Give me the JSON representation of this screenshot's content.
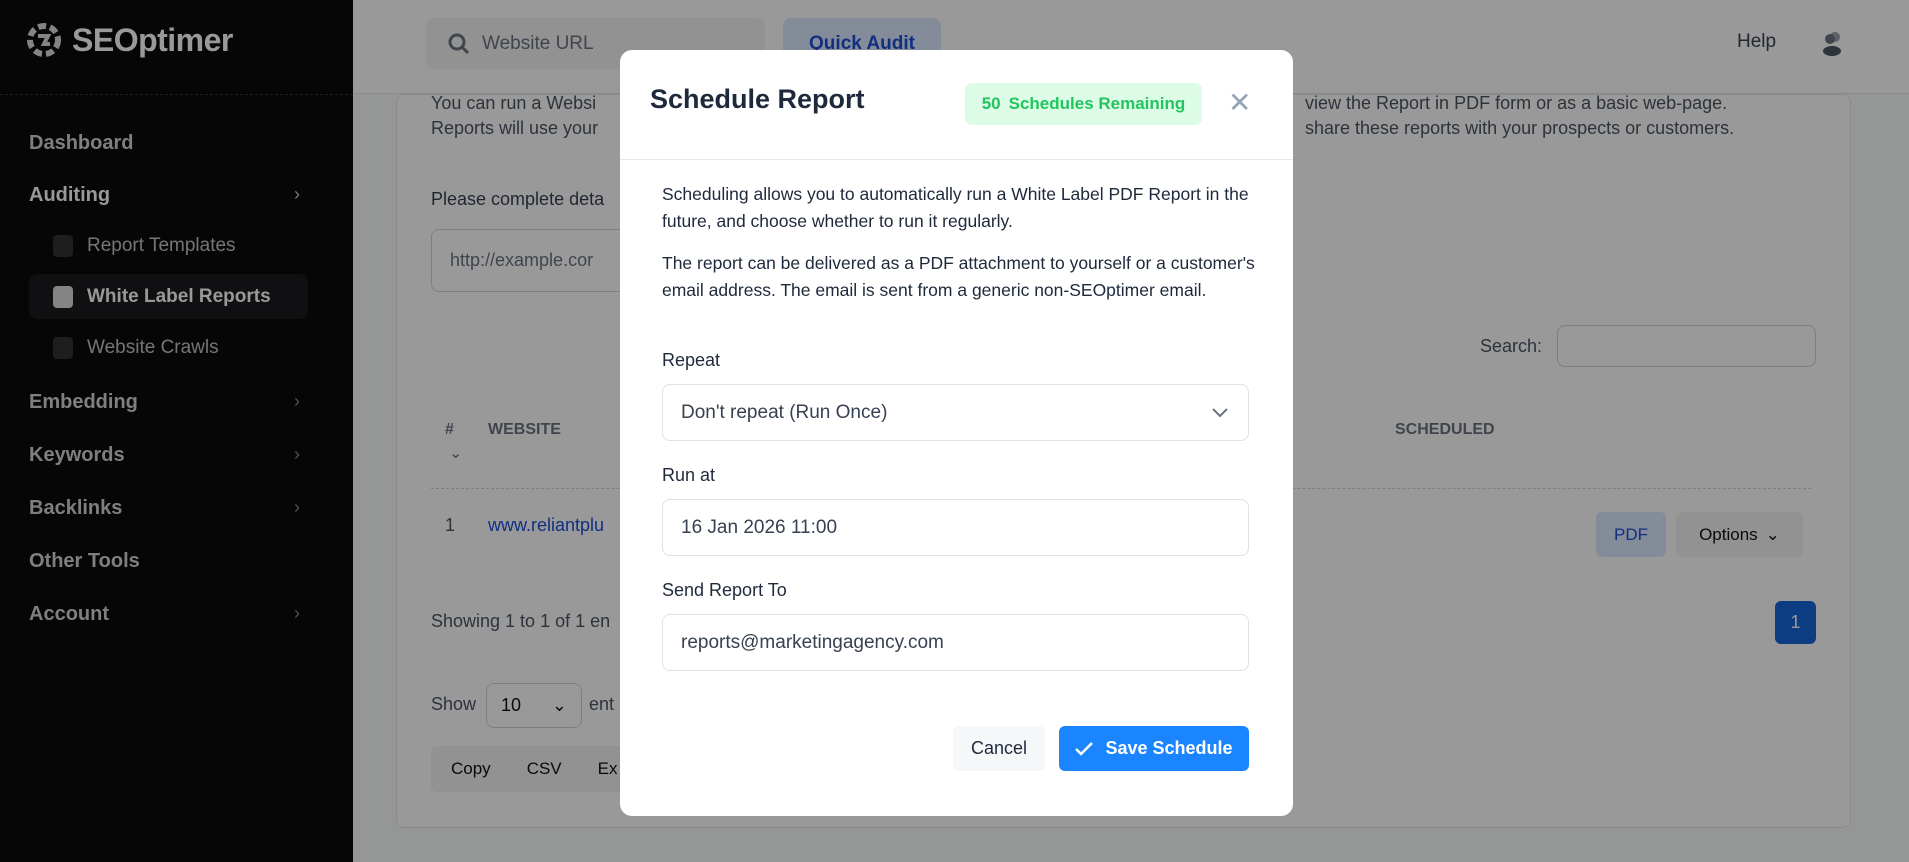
{
  "sidebar": {
    "logo": "SEOptimer",
    "items": [
      {
        "label": "Dashboard"
      },
      {
        "label": "Auditing"
      },
      {
        "label": "Report Templates"
      },
      {
        "label": "White Label Reports"
      },
      {
        "label": "Website Crawls"
      },
      {
        "label": "Embedding"
      },
      {
        "label": "Keywords"
      },
      {
        "label": "Backlinks"
      },
      {
        "label": "Other Tools"
      },
      {
        "label": "Account"
      }
    ]
  },
  "topbar": {
    "search_placeholder": "Website URL",
    "quick_audit": "Quick Audit",
    "help": "Help"
  },
  "page": {
    "intro_line1_left": "You can run a Websi",
    "intro_line1_right": "view the Report in PDF form or as a basic web-page.",
    "intro_line2_left": "Reports will use your",
    "intro_line2_right": "share these reports with your prospects or customers.",
    "complete_label": "Please complete deta",
    "url_placeholder": "http://example.cor",
    "search_label": "Search:",
    "table": {
      "headers": {
        "num": "#",
        "website": "WEBSITE",
        "scheduled": "SCHEDULED"
      },
      "rows": [
        {
          "num": "1",
          "website": "www.reliantplu",
          "pdf": "PDF",
          "options": "Options"
        }
      ]
    },
    "showing": "Showing 1 to 1 of 1 en",
    "page_number": "1",
    "show_label": "Show",
    "page_size": "10",
    "entries_label": "ent",
    "export_buttons": [
      "Copy",
      "CSV",
      "Ex"
    ]
  },
  "modal": {
    "title": "Schedule Report",
    "badge_count": "50",
    "badge_text": "Schedules Remaining",
    "para1": "Scheduling allows you to automatically run a White Label PDF Report in the future, and choose whether to run it regularly.",
    "para2": "The report can be delivered as a PDF attachment to yourself or a customer's email address. The email is sent from a generic non-SEOptimer email.",
    "repeat_label": "Repeat",
    "repeat_value": "Don't repeat (Run Once)",
    "run_at_label": "Run at",
    "run_at_value": "16 Jan 2026 11:00",
    "send_to_label": "Send Report To",
    "send_to_value": "reports@marketingagency.com",
    "cancel": "Cancel",
    "save": "Save Schedule"
  },
  "colors": {
    "accent": "#1a85ff",
    "badge_bg": "#dcfce7",
    "badge_text": "#22c55e",
    "sidebar_bg": "#0a0a0c"
  }
}
